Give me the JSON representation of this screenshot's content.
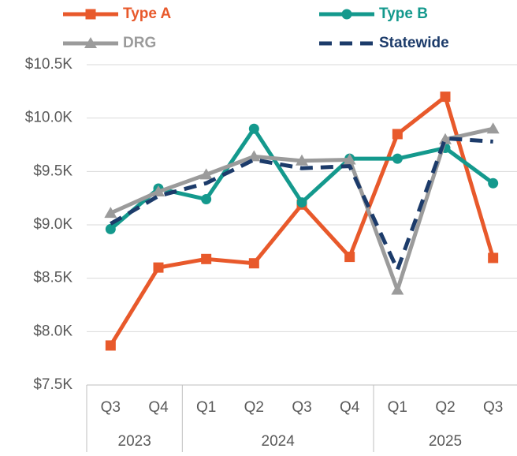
{
  "chart_data": {
    "type": "line",
    "categories": [
      "Q3",
      "Q4",
      "Q1",
      "Q2",
      "Q3",
      "Q4",
      "Q1",
      "Q2",
      "Q3"
    ],
    "category_groups": [
      {
        "label": "2023",
        "size": 2
      },
      {
        "label": "2024",
        "size": 4
      },
      {
        "label": "2025",
        "size": 3
      }
    ],
    "series": [
      {
        "name": "Type A",
        "color": "#e8592b",
        "marker": "square",
        "values": [
          7870,
          8600,
          8680,
          8640,
          9190,
          8700,
          9850,
          10200,
          8690
        ]
      },
      {
        "name": "Type B",
        "color": "#14998d",
        "marker": "circle",
        "values": [
          8960,
          9340,
          9240,
          9900,
          9210,
          9620,
          9620,
          9720,
          9390
        ]
      },
      {
        "name": "DRG",
        "color": "#9b9b9b",
        "marker": "triangle",
        "values": [
          9110,
          9310,
          9470,
          9640,
          9600,
          9610,
          8390,
          9800,
          9900
        ]
      },
      {
        "name": "Statewide",
        "color": "#1c3b6a",
        "dashed": true,
        "values": [
          9010,
          9270,
          9390,
          9610,
          9530,
          9550,
          8580,
          9810,
          9780
        ]
      }
    ],
    "ylim": [
      7500,
      10500
    ],
    "yticks": [
      {
        "value": 7500,
        "label": "$7.5K"
      },
      {
        "value": 8000,
        "label": "$8.0K"
      },
      {
        "value": 8500,
        "label": "$8.5K"
      },
      {
        "value": 9000,
        "label": "$9.0K"
      },
      {
        "value": 9500,
        "label": "$9.5K"
      },
      {
        "value": 10000,
        "label": "$10.0K"
      },
      {
        "value": 10500,
        "label": "$10.5K"
      }
    ],
    "grid": true
  }
}
